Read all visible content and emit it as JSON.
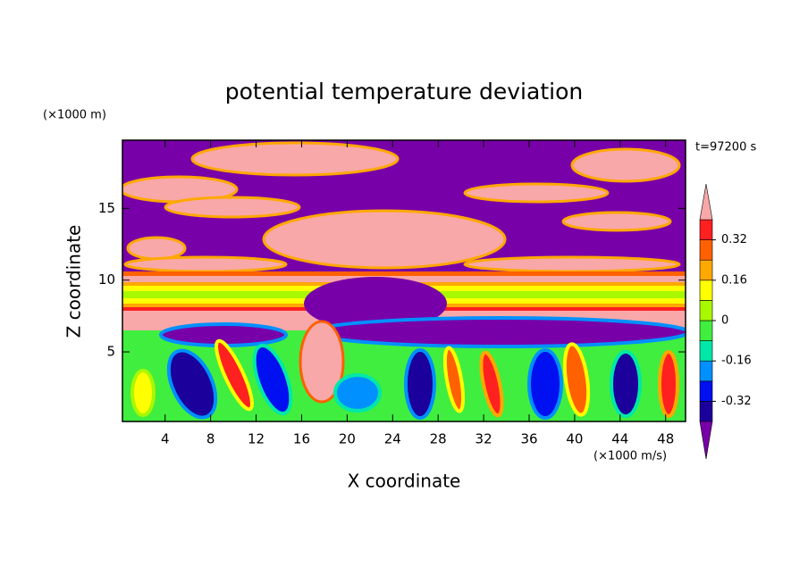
{
  "chart_data": {
    "type": "contour",
    "title": "potential temperature deviation",
    "x_label": "X coordinate",
    "y_label": "Z coordinate",
    "x_unit": "(×1000 m/s)",
    "y_unit": "(×1000 m)",
    "time_label": "t=97200 s",
    "xlim": [
      0.25,
      49.75
    ],
    "ylim": [
      0.15,
      19.75
    ],
    "xticks": [
      4,
      8,
      12,
      16,
      20,
      24,
      28,
      32,
      36,
      40,
      44,
      48
    ],
    "yticks": [
      5,
      10,
      15
    ],
    "levels": [
      -0.4,
      -0.32,
      -0.24,
      -0.16,
      -0.08,
      0,
      0.08,
      0.16,
      0.24,
      0.32,
      0.4
    ],
    "colors": [
      "#7800a8",
      "#1c009c",
      "#0010f0",
      "#0090ff",
      "#00e8a8",
      "#40ee40",
      "#a8f800",
      "#ffff00",
      "#ffa800",
      "#ff6000",
      "#ff2020",
      "#f8a8a8"
    ],
    "colorbar_ticks": [
      -0.32,
      -0.16,
      0,
      0.16,
      0.32
    ]
  }
}
